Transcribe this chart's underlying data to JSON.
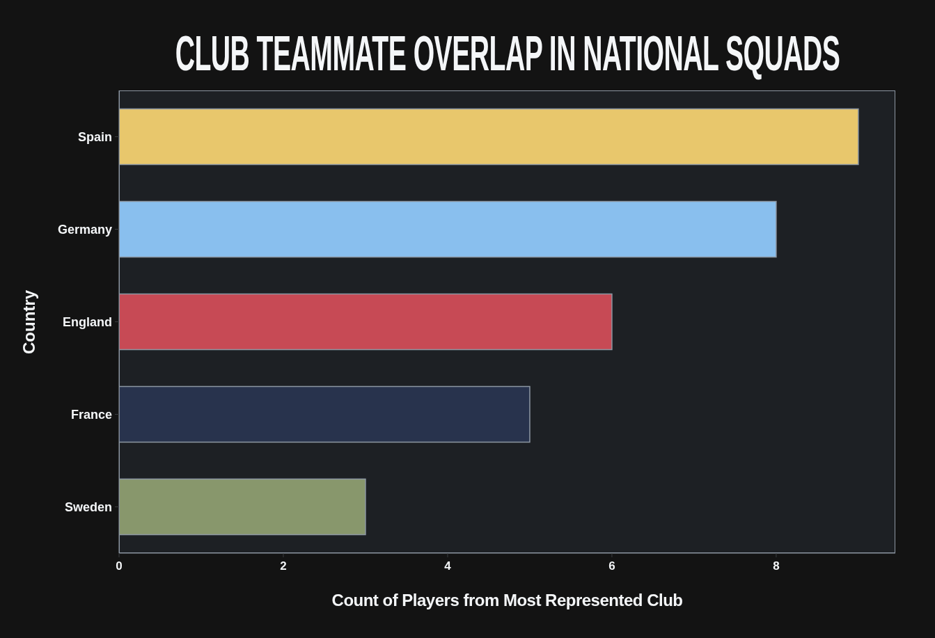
{
  "chart_data": {
    "type": "bar",
    "orientation": "horizontal",
    "title": "CLUB TEAMMATE OVERLAP IN NATIONAL SQUADS",
    "xlabel": "Count of Players from Most Represented Club",
    "ylabel": "Country",
    "categories": [
      "Spain",
      "Germany",
      "England",
      "France",
      "Sweden"
    ],
    "values": [
      9,
      8,
      6,
      5,
      3
    ],
    "colors": [
      "#e8c76c",
      "#89bfee",
      "#c74a55",
      "#28334d",
      "#88976c"
    ],
    "xlim": [
      0,
      9.45
    ],
    "xticks": [
      0,
      2,
      4,
      6,
      8
    ]
  }
}
